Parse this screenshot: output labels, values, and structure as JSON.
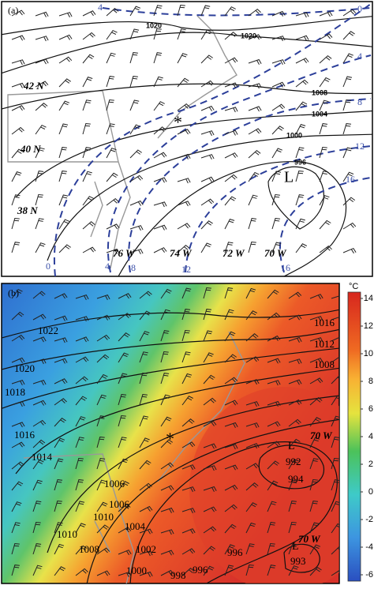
{
  "panel_a": {
    "label": "(a)",
    "isobar_labels": [
      "1020",
      "1020",
      "1008",
      "1004",
      "1000",
      "996"
    ],
    "low_label": "L",
    "latitude_labels": [
      "42 N",
      "40 N",
      "38 N"
    ],
    "longitude_labels": [
      "76 W",
      "74 W",
      "72 W",
      "70 W"
    ],
    "dashed_labels": [
      "4",
      "0",
      "4",
      "8",
      "12",
      "16",
      "0",
      "4",
      "8",
      "12",
      "16"
    ]
  },
  "panel_b": {
    "label": "(b)",
    "isobar_labels": [
      "1022",
      "1020",
      "1018",
      "1016",
      "1014",
      "1010",
      "1010",
      "1008",
      "1006",
      "1006",
      "1004",
      "1002",
      "1000",
      "998",
      "996",
      "996",
      "992",
      "994",
      "993",
      "1016",
      "1012",
      "1008"
    ],
    "low_labels": [
      "L",
      "L"
    ],
    "longitude_labels": [
      "70 W",
      "70 W"
    ],
    "colorbar": {
      "unit": "°C",
      "ticks": [
        14,
        12,
        10,
        8,
        6,
        4,
        2,
        0,
        -2,
        -4,
        -6
      ]
    }
  }
}
